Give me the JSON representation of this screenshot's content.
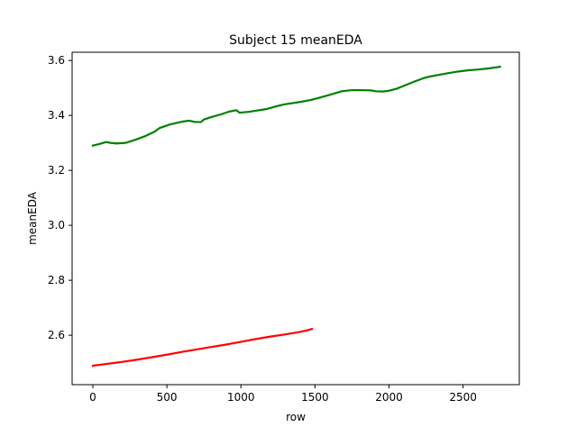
{
  "chart_data": {
    "type": "line",
    "title": "Subject 15 meanEDA",
    "xlabel": "row",
    "ylabel": "meanEDA",
    "xlim": [
      -140,
      2880
    ],
    "ylim": [
      2.42,
      3.63
    ],
    "xticks": [
      0,
      500,
      1000,
      1500,
      2000,
      2500
    ],
    "yticks": [
      2.6,
      2.8,
      3.0,
      3.2,
      3.4,
      3.6
    ],
    "xtick_labels": [
      "0",
      "500",
      "1000",
      "1500",
      "2000",
      "2500"
    ],
    "ytick_labels": [
      "2.6",
      "2.8",
      "3.0",
      "3.2",
      "3.4",
      "3.6"
    ],
    "grid": false,
    "legend": "none",
    "series": [
      {
        "color": "#008000",
        "x": [
          0,
          50,
          90,
          120,
          160,
          220,
          280,
          350,
          420,
          450,
          520,
          600,
          650,
          690,
          730,
          750,
          800,
          860,
          920,
          970,
          990,
          1050,
          1110,
          1170,
          1230,
          1290,
          1350,
          1410,
          1470,
          1540,
          1620,
          1680,
          1750,
          1810,
          1880,
          1910,
          1960,
          2000,
          2050,
          2110,
          2170,
          2230,
          2270,
          2330,
          2400,
          2470,
          2530,
          2600,
          2670,
          2710,
          2750
        ],
        "y": [
          3.29,
          3.297,
          3.303,
          3.3,
          3.298,
          3.3,
          3.31,
          3.324,
          3.342,
          3.354,
          3.367,
          3.377,
          3.381,
          3.376,
          3.376,
          3.385,
          3.394,
          3.403,
          3.414,
          3.419,
          3.41,
          3.413,
          3.418,
          3.423,
          3.432,
          3.44,
          3.445,
          3.45,
          3.456,
          3.466,
          3.478,
          3.488,
          3.492,
          3.492,
          3.491,
          3.488,
          3.487,
          3.49,
          3.497,
          3.51,
          3.523,
          3.535,
          3.541,
          3.547,
          3.554,
          3.56,
          3.564,
          3.567,
          3.571,
          3.574,
          3.577
        ]
      },
      {
        "color": "#ff0000",
        "x": [
          0,
          100,
          200,
          300,
          400,
          500,
          600,
          700,
          800,
          900,
          1000,
          1100,
          1200,
          1300,
          1400,
          1450,
          1480
        ],
        "y": [
          2.489,
          2.496,
          2.503,
          2.511,
          2.52,
          2.529,
          2.539,
          2.548,
          2.557,
          2.566,
          2.576,
          2.586,
          2.595,
          2.603,
          2.612,
          2.618,
          2.623
        ]
      }
    ]
  }
}
